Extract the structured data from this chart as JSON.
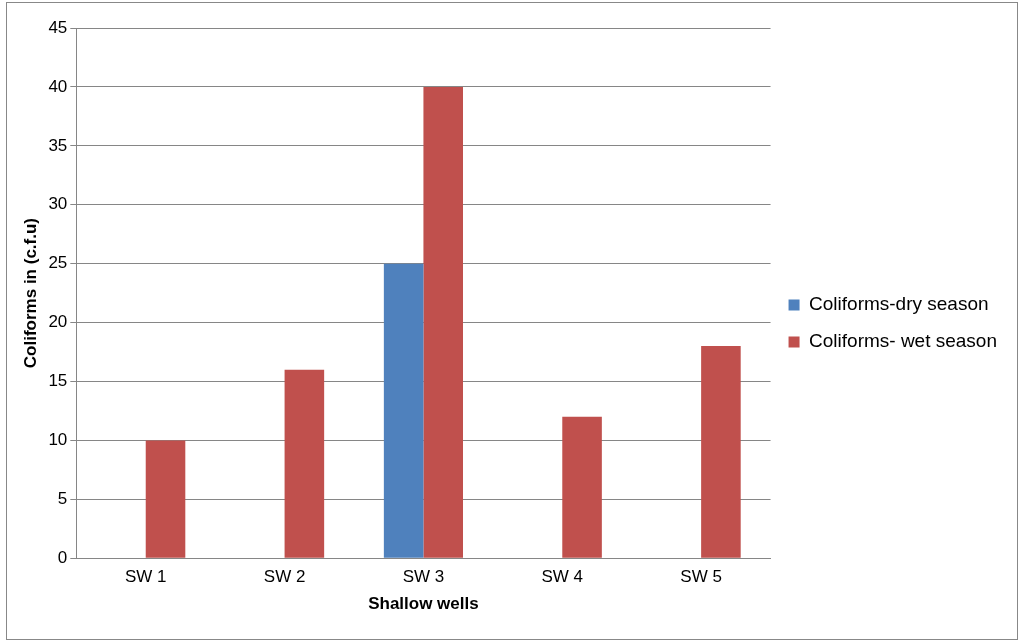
{
  "chart_data": {
    "type": "bar",
    "xlabel": "Shallow wells",
    "ylabel": "Coliforms in (c.f.u)",
    "categories": [
      "SW 1",
      "SW 2",
      "SW 3",
      "SW 4",
      "SW 5"
    ],
    "series": [
      {
        "name": "Coliforms-dry season",
        "color": "#4f81bd",
        "values": [
          0,
          0,
          25,
          0,
          0
        ]
      },
      {
        "name": "Coliforms- wet season",
        "color": "#c0504d",
        "values": [
          10,
          16,
          40,
          12,
          18
        ]
      }
    ],
    "ylim": [
      0,
      45
    ],
    "yticks": [
      0,
      5,
      10,
      15,
      20,
      25,
      30,
      35,
      40,
      45
    ],
    "grid": "y",
    "legend": "right"
  }
}
